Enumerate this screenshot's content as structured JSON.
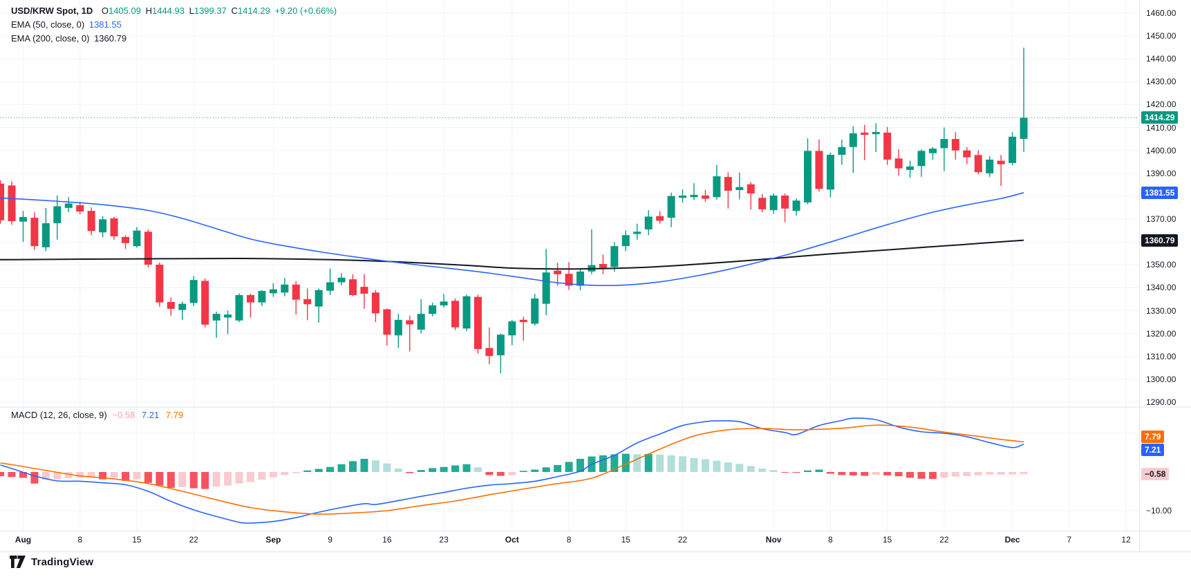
{
  "app": {
    "watermark_brand": "TradingView"
  },
  "colors": {
    "up": "#089981",
    "down": "#F23645",
    "ema50": "#2962FF",
    "ema200": "#131722",
    "macd_line": "#2962FF",
    "signal_line": "#FF6D00",
    "hist_up": "#22AB94",
    "hist_up_fade": "#B2DFDB",
    "hist_down": "#F7525F",
    "hist_down_fade": "#F9CBCE",
    "grid": "#F0F3FA",
    "separator": "#E0E3EB",
    "text": "#131722",
    "last_price_line": "#089981",
    "badge_last_bg": "#089981",
    "badge_ema50_bg": "#2962FF",
    "badge_ema200_bg": "#131722",
    "badge_signal_bg": "#FF6D00",
    "badge_macd_bg": "#2962FF",
    "badge_hist_bg": "#F9CBCE"
  },
  "legend": {
    "symbol_title": "USD/KRW Spot, 1D",
    "open_label": "O",
    "open": "1405.09",
    "high_label": "H",
    "high": "1444.93",
    "low_label": "L",
    "low": "1399.37",
    "close_label": "C",
    "close": "1414.29",
    "change": "+9.20 (+0.66%)"
  },
  "ema50_legend": {
    "title": "EMA (50, close, 0)",
    "value": "1381.55"
  },
  "ema200_legend": {
    "title": "EMA (200, close, 0)",
    "value": "1360.79"
  },
  "macd_legend": {
    "title": "MACD (12, 26, close, 9)",
    "hist_value": "−0.58",
    "macd_value": "7.21",
    "signal_value": "7.79"
  },
  "badges": {
    "last_price": "1414.29",
    "ema50": "1381.55",
    "ema200": "1360.79",
    "signal": "7.79",
    "macd": "7.21",
    "hist": "−0.58"
  },
  "chart_data": {
    "type": "candlestick",
    "symbol": "USD/KRW Spot",
    "timeframe": "1D",
    "last_bar": {
      "open": 1405.09,
      "high": 1444.93,
      "low": 1399.37,
      "close": 1414.29,
      "change": 9.2,
      "change_pct": 0.66
    },
    "price_axis": {
      "min": 1290,
      "max": 1460,
      "step": 10,
      "tick_labels": [
        "1460.00",
        "1450.00",
        "1440.00",
        "1430.00",
        "1420.00",
        "1410.00",
        "1400.00",
        "1390.00",
        "1380.00",
        "1370.00",
        "1360.00",
        "1350.00",
        "1340.00",
        "1330.00",
        "1320.00",
        "1310.00",
        "1300.00",
        "1290.00"
      ]
    },
    "macd_axis": {
      "tick_labels": [
        {
          "value": -10,
          "label": "−10.00"
        }
      ],
      "gridline_values": [
        10,
        -10
      ]
    },
    "time_ticks": [
      {
        "index": 1,
        "label": "Aug",
        "month": true
      },
      {
        "index": 6,
        "label": "8"
      },
      {
        "index": 11,
        "label": "15"
      },
      {
        "index": 16,
        "label": "22"
      },
      {
        "index": 23,
        "label": "Sep",
        "month": true
      },
      {
        "index": 28,
        "label": "9"
      },
      {
        "index": 33,
        "label": "16"
      },
      {
        "index": 38,
        "label": "23"
      },
      {
        "index": 44,
        "label": "Oct",
        "month": true
      },
      {
        "index": 49,
        "label": "8"
      },
      {
        "index": 54,
        "label": "15"
      },
      {
        "index": 59,
        "label": "22"
      },
      {
        "index": 67,
        "label": "Nov",
        "month": true
      },
      {
        "index": 72,
        "label": "8"
      },
      {
        "index": 77,
        "label": "15"
      },
      {
        "index": 82,
        "label": "22"
      },
      {
        "index": 88,
        "label": "Dec",
        "month": true
      },
      {
        "index": 93,
        "label": "7"
      },
      {
        "index": 98,
        "label": "12"
      }
    ],
    "left_clipped_candle": [
      1385.5,
      1387.0,
      1368.0,
      1369.5
    ],
    "left_clipped_hist": -1.1,
    "candles": [
      [
        1384.7,
        1386.5,
        1367.5,
        1369.1
      ],
      [
        1368.9,
        1373.6,
        1360.0,
        1370.9
      ],
      [
        1370.6,
        1373.0,
        1356.5,
        1358.2
      ],
      [
        1357.7,
        1374.9,
        1356.0,
        1368.2
      ],
      [
        1368.2,
        1380.3,
        1361.0,
        1375.6
      ],
      [
        1374.9,
        1379.6,
        1373.0,
        1376.8
      ],
      [
        1376.1,
        1377.6,
        1372.1,
        1373.3
      ],
      [
        1373.6,
        1375.1,
        1363.0,
        1364.8
      ],
      [
        1364.2,
        1371.3,
        1362.0,
        1369.9
      ],
      [
        1370.3,
        1371.0,
        1361.0,
        1362.5
      ],
      [
        1362.2,
        1363.0,
        1357.0,
        1359.5
      ],
      [
        1358.2,
        1366.5,
        1357.5,
        1365.0
      ],
      [
        1364.5,
        1365.5,
        1348.9,
        1350.1
      ],
      [
        1350.1,
        1351.0,
        1331.8,
        1333.6
      ],
      [
        1333.8,
        1335.8,
        1327.8,
        1330.8
      ],
      [
        1330.3,
        1334.0,
        1326.0,
        1333.0
      ],
      [
        1333.4,
        1345.1,
        1332.0,
        1343.4
      ],
      [
        1343.0,
        1344.0,
        1322.7,
        1323.9
      ],
      [
        1325.7,
        1329.5,
        1318.2,
        1328.6
      ],
      [
        1327.0,
        1330.0,
        1319.7,
        1328.3
      ],
      [
        1325.7,
        1337.5,
        1325.0,
        1336.8
      ],
      [
        1336.8,
        1337.5,
        1327.0,
        1333.6
      ],
      [
        1333.6,
        1339.0,
        1332.0,
        1338.6
      ],
      [
        1337.6,
        1342.0,
        1336.0,
        1339.3
      ],
      [
        1337.9,
        1344.4,
        1336.3,
        1341.4
      ],
      [
        1341.4,
        1342.9,
        1328.3,
        1334.8
      ],
      [
        1335.0,
        1339.7,
        1325.8,
        1332.8
      ],
      [
        1331.8,
        1339.7,
        1324.8,
        1339.0
      ],
      [
        1338.7,
        1348.4,
        1336.8,
        1342.4
      ],
      [
        1342.4,
        1346.4,
        1341.0,
        1344.4
      ],
      [
        1343.7,
        1345.9,
        1336.3,
        1336.8
      ],
      [
        1340.4,
        1345.9,
        1330.8,
        1337.4
      ],
      [
        1337.9,
        1339.0,
        1325.0,
        1328.8
      ],
      [
        1330.6,
        1331.0,
        1314.7,
        1319.5
      ],
      [
        1319.2,
        1328.6,
        1313.7,
        1326.0
      ],
      [
        1325.8,
        1327.8,
        1312.2,
        1324.0
      ],
      [
        1321.7,
        1335.0,
        1320.0,
        1328.6
      ],
      [
        1328.6,
        1333.5,
        1327.5,
        1332.3
      ],
      [
        1332.3,
        1337.3,
        1331.3,
        1334.0
      ],
      [
        1334.3,
        1335.3,
        1321.5,
        1322.7
      ],
      [
        1322.2,
        1337.0,
        1321.0,
        1336.3
      ],
      [
        1336.0,
        1337.0,
        1311.2,
        1313.2
      ],
      [
        1313.7,
        1322.7,
        1306.6,
        1310.2
      ],
      [
        1310.5,
        1320.0,
        1302.6,
        1319.5
      ],
      [
        1319.2,
        1326.0,
        1314.9,
        1325.3
      ],
      [
        1326.0,
        1327.3,
        1316.9,
        1325.0
      ],
      [
        1324.3,
        1337.3,
        1323.5,
        1335.3
      ],
      [
        1333.0,
        1357.0,
        1328.0,
        1346.7
      ],
      [
        1347.5,
        1350.9,
        1341.0,
        1345.9
      ],
      [
        1346.1,
        1351.2,
        1339.0,
        1340.9
      ],
      [
        1340.9,
        1348.4,
        1338.9,
        1347.1
      ],
      [
        1347.1,
        1365.5,
        1345.9,
        1349.9
      ],
      [
        1350.4,
        1354.5,
        1345.9,
        1348.7
      ],
      [
        1349.1,
        1360.0,
        1347.0,
        1358.2
      ],
      [
        1358.2,
        1365.0,
        1356.0,
        1363.0
      ],
      [
        1363.5,
        1368.0,
        1361.0,
        1364.5
      ],
      [
        1365.5,
        1373.9,
        1363.0,
        1371.1
      ],
      [
        1371.3,
        1373.5,
        1368.0,
        1369.3
      ],
      [
        1370.6,
        1381.6,
        1366.5,
        1380.1
      ],
      [
        1379.3,
        1383.0,
        1377.1,
        1380.3
      ],
      [
        1379.6,
        1385.7,
        1378.3,
        1380.6
      ],
      [
        1380.3,
        1382.8,
        1377.5,
        1378.9
      ],
      [
        1379.6,
        1393.7,
        1378.5,
        1388.7
      ],
      [
        1388.4,
        1390.4,
        1374.6,
        1382.4
      ],
      [
        1382.7,
        1390.4,
        1378.6,
        1384.0
      ],
      [
        1385.2,
        1386.2,
        1374.1,
        1381.2
      ],
      [
        1379.3,
        1381.0,
        1373.0,
        1374.3
      ],
      [
        1373.9,
        1381.2,
        1372.3,
        1380.3
      ],
      [
        1380.3,
        1381.2,
        1368.6,
        1374.6
      ],
      [
        1373.6,
        1379.0,
        1371.5,
        1378.1
      ],
      [
        1377.3,
        1405.3,
        1376.5,
        1399.8
      ],
      [
        1399.8,
        1404.8,
        1382.0,
        1383.2
      ],
      [
        1382.9,
        1399.0,
        1379.6,
        1398.1
      ],
      [
        1398.1,
        1404.8,
        1393.7,
        1401.5
      ],
      [
        1401.5,
        1410.5,
        1390.2,
        1407.5
      ],
      [
        1407.8,
        1411.2,
        1395.8,
        1406.8
      ],
      [
        1407.1,
        1411.9,
        1399.3,
        1408.1
      ],
      [
        1407.8,
        1410.3,
        1393.7,
        1396.0
      ],
      [
        1396.5,
        1400.5,
        1389.0,
        1392.2
      ],
      [
        1391.5,
        1395.5,
        1388.0,
        1393.0
      ],
      [
        1393.2,
        1400.5,
        1388.5,
        1399.8
      ],
      [
        1398.8,
        1401.5,
        1396.0,
        1400.8
      ],
      [
        1401.0,
        1410.0,
        1391.0,
        1405.0
      ],
      [
        1405.0,
        1408.0,
        1396.0,
        1400.0
      ],
      [
        1400.0,
        1401.5,
        1394.0,
        1397.0
      ],
      [
        1398.0,
        1400.0,
        1389.5,
        1390.5
      ],
      [
        1390.0,
        1397.5,
        1388.5,
        1396.0
      ],
      [
        1395.5,
        1398.0,
        1384.5,
        1394.0
      ],
      [
        1394.5,
        1408.0,
        1393.5,
        1406.0
      ],
      [
        1405.09,
        1444.93,
        1399.37,
        1414.29
      ]
    ],
    "overlays": [
      {
        "name": "EMA 50",
        "current": 1381.55,
        "points": [
          [
            -1,
            1379.2
          ],
          [
            0,
            1379
          ],
          [
            4,
            1377.8
          ],
          [
            8,
            1376.3
          ],
          [
            12,
            1373.8
          ],
          [
            15,
            1370.3
          ],
          [
            18,
            1365.8
          ],
          [
            21,
            1361.3
          ],
          [
            24,
            1358.3
          ],
          [
            27,
            1355.8
          ],
          [
            30,
            1353.6
          ],
          [
            33,
            1351.6
          ],
          [
            36,
            1349.8
          ],
          [
            39,
            1348.2
          ],
          [
            42,
            1346.4
          ],
          [
            45,
            1344.3
          ],
          [
            48,
            1342.2
          ],
          [
            51,
            1341.1
          ],
          [
            54,
            1341.2
          ],
          [
            57,
            1342.6
          ],
          [
            60,
            1345
          ],
          [
            63,
            1348
          ],
          [
            66,
            1351.6
          ],
          [
            69,
            1355.6
          ],
          [
            72,
            1360
          ],
          [
            75,
            1364.6
          ],
          [
            78,
            1369
          ],
          [
            81,
            1373
          ],
          [
            84,
            1376.2
          ],
          [
            87,
            1379
          ],
          [
            89,
            1381.55
          ]
        ]
      },
      {
        "name": "EMA 200",
        "current": 1360.79,
        "points": [
          [
            -1,
            1352.3
          ],
          [
            0,
            1352.3
          ],
          [
            10,
            1352.6
          ],
          [
            20,
            1352.8
          ],
          [
            28,
            1352.3
          ],
          [
            34,
            1351.3
          ],
          [
            40,
            1349.8
          ],
          [
            44,
            1348.6
          ],
          [
            48,
            1348.2
          ],
          [
            52,
            1348.4
          ],
          [
            56,
            1349
          ],
          [
            60,
            1350.2
          ],
          [
            64,
            1351.6
          ],
          [
            68,
            1353.2
          ],
          [
            72,
            1354.8
          ],
          [
            76,
            1356.2
          ],
          [
            80,
            1357.6
          ],
          [
            84,
            1359
          ],
          [
            89,
            1360.79
          ]
        ]
      }
    ],
    "macd": {
      "params": "12, 26, close, 9",
      "values": {
        "macd": 7.21,
        "signal": 7.79,
        "histogram": -0.58
      },
      "macd_points": [
        [
          -1,
          1.8
        ],
        [
          0,
          0.9
        ],
        [
          2,
          -1.0
        ],
        [
          4,
          -2.3
        ],
        [
          6,
          -2.4
        ],
        [
          8,
          -2.8
        ],
        [
          10,
          -3.3
        ],
        [
          12,
          -5.0
        ],
        [
          14,
          -7.6
        ],
        [
          16,
          -9.8
        ],
        [
          18,
          -11.5
        ],
        [
          20,
          -13.0
        ],
        [
          21,
          -13.2
        ],
        [
          23,
          -12.8
        ],
        [
          25,
          -11.8
        ],
        [
          27,
          -10.4
        ],
        [
          29,
          -9.2
        ],
        [
          31,
          -8.2
        ],
        [
          32,
          -8.4
        ],
        [
          34,
          -7.4
        ],
        [
          36,
          -6.3
        ],
        [
          38,
          -5.3
        ],
        [
          40,
          -4.2
        ],
        [
          42,
          -3.4
        ],
        [
          44,
          -3.0
        ],
        [
          46,
          -2.4
        ],
        [
          48,
          -1.2
        ],
        [
          50,
          0.2
        ],
        [
          51,
          2.0
        ],
        [
          53,
          4.3
        ],
        [
          55,
          7.5
        ],
        [
          57,
          9.8
        ],
        [
          59,
          12.0
        ],
        [
          61,
          13.0
        ],
        [
          62,
          13.2
        ],
        [
          64,
          13.0
        ],
        [
          66,
          11.2
        ],
        [
          68,
          10.2
        ],
        [
          69,
          9.7
        ],
        [
          71,
          12.0
        ],
        [
          73,
          13.3
        ],
        [
          74,
          13.9
        ],
        [
          76,
          13.5
        ],
        [
          78,
          11.6
        ],
        [
          80,
          10.4
        ],
        [
          82,
          10.0
        ],
        [
          84,
          9.1
        ],
        [
          86,
          7.6
        ],
        [
          88,
          6.3
        ],
        [
          89,
          7.21
        ]
      ],
      "signal_points": [
        [
          -1,
          2.3
        ],
        [
          0,
          1.9
        ],
        [
          3,
          0.4
        ],
        [
          6,
          -1.0
        ],
        [
          9,
          -1.8
        ],
        [
          12,
          -3.0
        ],
        [
          15,
          -5.0
        ],
        [
          18,
          -7.2
        ],
        [
          21,
          -9.2
        ],
        [
          24,
          -10.3
        ],
        [
          27,
          -10.9
        ],
        [
          30,
          -10.6
        ],
        [
          33,
          -10.0
        ],
        [
          36,
          -8.7
        ],
        [
          39,
          -7.5
        ],
        [
          42,
          -5.9
        ],
        [
          45,
          -4.4
        ],
        [
          48,
          -3.0
        ],
        [
          51,
          -1.6
        ],
        [
          54,
          2.0
        ],
        [
          57,
          5.9
        ],
        [
          60,
          9.3
        ],
        [
          63,
          10.9
        ],
        [
          66,
          11.25
        ],
        [
          69,
          10.9
        ],
        [
          73,
          11.3
        ],
        [
          76,
          12.1
        ],
        [
          79,
          11.6
        ],
        [
          82,
          10.3
        ],
        [
          85,
          9.2
        ],
        [
          87,
          8.4
        ],
        [
          89,
          7.79
        ]
      ],
      "histogram": [
        -1.3,
        -1.5,
        -3.0,
        -2.0,
        -1.9,
        -1.6,
        -1.5,
        -1.2,
        -1.9,
        -1.5,
        -2.3,
        -1.9,
        -2.8,
        -3.5,
        -4.1,
        -3.9,
        -4.2,
        -4.4,
        -3.8,
        -3.5,
        -3.0,
        -2.6,
        -2.0,
        -1.4,
        -0.8,
        -0.3,
        0.4,
        0.8,
        1.3,
        2.0,
        2.8,
        3.4,
        3.0,
        2.2,
        0.9,
        -0.3,
        0.5,
        1.0,
        1.3,
        1.7,
        2.0,
        1.2,
        -0.8,
        -1.0,
        -0.8,
        0.3,
        0.6,
        1.2,
        1.8,
        2.6,
        3.4,
        4.0,
        4.3,
        4.55,
        4.7,
        4.6,
        4.65,
        4.5,
        4.3,
        4.05,
        3.6,
        3.3,
        2.9,
        2.5,
        2.1,
        1.55,
        0.9,
        0.5,
        -0.15,
        -0.2,
        0.4,
        0.6,
        -0.45,
        -0.8,
        -0.9,
        -1.0,
        -0.75,
        -0.9,
        -1.1,
        -1.5,
        -1.75,
        -1.8,
        -1.5,
        -1.2,
        -1.05,
        -0.9,
        -0.7,
        -0.68,
        -0.65,
        -0.58
      ]
    }
  }
}
